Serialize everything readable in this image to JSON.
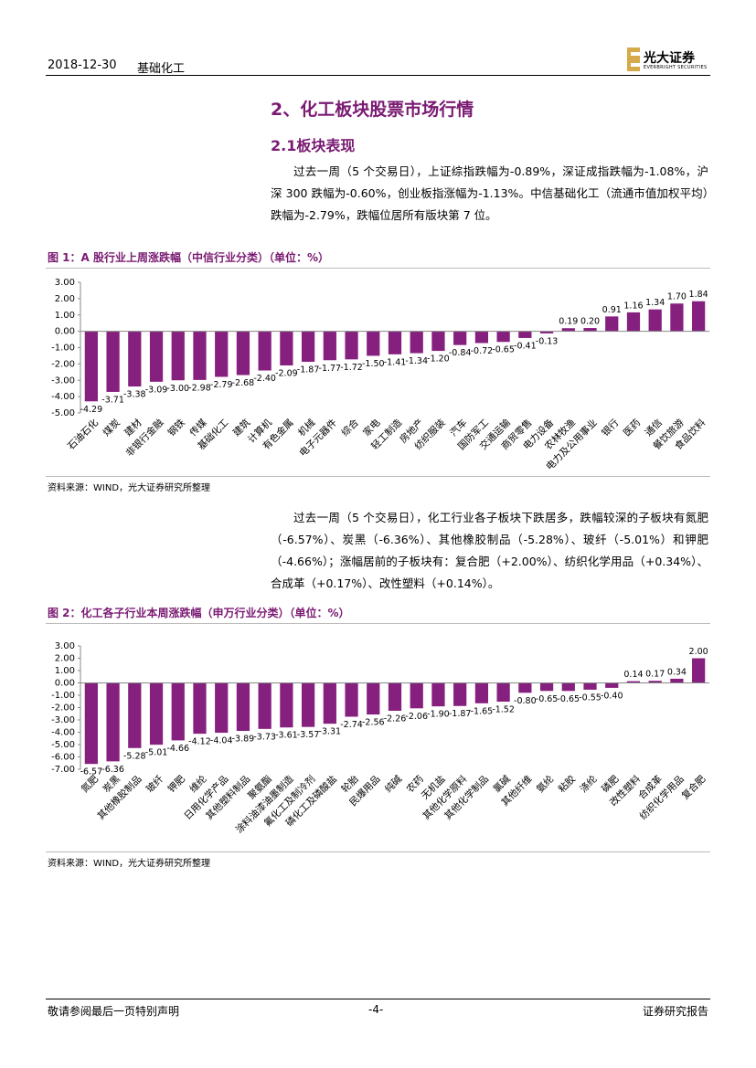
{
  "header": {
    "date": "2018-12-30",
    "sector": "基础化工",
    "logo": "光大证券",
    "logo_en": "EVERBRIGHT SECURITIES"
  },
  "section_title": "2、化工板块股票市场行情",
  "subsection_title": "2.1板块表现",
  "paragraphs": [
    "过去一周（5 个交易日），上证综指跌幅为-0.89%，深证成指跌幅为-1.08%，沪深 300 跌幅为-0.60%，创业板指涨幅为-1.13%。中信基础化工（流通市值加权平均）跌幅为-2.79%，跌幅位居所有版块第 7 位。",
    "过去一周（5 个交易日），化工行业各子板块下跌居多，跌幅较深的子板块有氮肥（-6.57%）、炭黑（-6.36%）、其他橡胶制品（-5.28%）、玻纤（-5.01%）和钾肥（-4.66%）；涨幅居前的子板块有：复合肥（+2.00%）、纺织化学用品（+0.34%）、合成革（+0.17%）、改性塑料（+0.14%）。"
  ],
  "chart_data": [
    {
      "type": "bar",
      "title": "图 1：A 股行业上周涨跌幅（中信行业分类）（单位：%）",
      "source": "资料来源：WIND，光大证券研究所整理",
      "categories": [
        "石油石化",
        "煤炭",
        "建材",
        "非银行金融",
        "钢铁",
        "传媒",
        "基础化工",
        "建筑",
        "计算机",
        "有色金属",
        "机械",
        "电子元器件",
        "综合",
        "家电",
        "轻工制造",
        "房地产",
        "纺织服装",
        "汽车",
        "国防军工",
        "交通运输",
        "商贸零售",
        "电力设备",
        "农林牧渔",
        "电力及公用事业",
        "银行",
        "医药",
        "通信",
        "餐饮旅游",
        "食品饮料"
      ],
      "values": [
        -4.29,
        -3.71,
        -3.38,
        -3.09,
        -3.0,
        -2.98,
        -2.79,
        -2.68,
        -2.4,
        -2.09,
        -1.87,
        -1.77,
        -1.72,
        -1.5,
        -1.41,
        -1.34,
        -1.2,
        -0.84,
        -0.72,
        -0.65,
        -0.41,
        -0.13,
        0.19,
        0.2,
        0.91,
        1.16,
        1.34,
        1.7,
        1.84
      ],
      "value_labels": [
        "-4.29",
        "-3.71",
        "-3.38",
        "-3.09",
        "-3.00",
        "-2.98",
        "-2.79",
        "-2.68",
        "-2.40",
        "-2.09",
        "-1.87",
        "-1.77",
        "-1.72",
        "-1.50",
        "-1.41",
        "-1.34",
        "-1.20",
        "-0.84",
        "-0.72",
        "-0.65",
        "-0.41",
        "-0.13",
        "0.19",
        "0.20",
        "0.91",
        "1.16",
        "1.34",
        "1.70",
        "1.84"
      ],
      "color": "#86207f",
      "ylim": [
        -5,
        3
      ],
      "yticks": [
        {
          "value": 3,
          "label": "3.00"
        },
        {
          "value": 2,
          "label": "2.00"
        },
        {
          "value": 1,
          "label": "1.00"
        },
        {
          "value": 0,
          "label": "0.00"
        },
        {
          "value": -1,
          "label": "-1.00"
        },
        {
          "value": -2,
          "label": "-2.00"
        },
        {
          "value": -3,
          "label": "-3.00"
        },
        {
          "value": -4,
          "label": "-4.00"
        },
        {
          "value": -5,
          "label": "-5.00"
        }
      ]
    },
    {
      "type": "bar",
      "title": "图 2：化工各子行业本周涨跌幅（申万行业分类）（单位：%）",
      "source": "资料来源：WIND，光大证券研究所整理",
      "categories": [
        "氮肥",
        "炭黑",
        "其他橡胶制品",
        "玻纤",
        "钾肥",
        "维纶",
        "日用化学产品",
        "其他塑料制品",
        "聚氨酯",
        "涂料油漆油墨制造",
        "氟化工及制冷剂",
        "磷化工及磷酸盐",
        "轮胎",
        "民爆用品",
        "纯碱",
        "农药",
        "无机盐",
        "其他化学原料",
        "其他化学制品",
        "氯碱",
        "其他纤维",
        "氨纶",
        "粘胶",
        "涤纶",
        "磷肥",
        "改性塑料",
        "合成革",
        "纺织化学用品",
        "复合肥"
      ],
      "values": [
        -6.57,
        -6.36,
        -5.28,
        -5.01,
        -4.66,
        -4.12,
        -4.04,
        -3.89,
        -3.73,
        -3.61,
        -3.57,
        -3.31,
        -2.74,
        -2.56,
        -2.26,
        -2.06,
        -1.9,
        -1.87,
        -1.65,
        -1.52,
        -0.8,
        -0.65,
        -0.65,
        -0.55,
        -0.4,
        0.14,
        0.17,
        0.34,
        2.0
      ],
      "value_labels": [
        "-6.57",
        "-6.36",
        "-5.28",
        "-5.01",
        "-4.66",
        "-4.12",
        "-4.04",
        "-3.89",
        "-3.73",
        "-3.61",
        "-3.57",
        "-3.31",
        "-2.74",
        "-2.56",
        "-2.26",
        "-2.06",
        "-1.90",
        "-1.87",
        "-1.65",
        "-1.52",
        "-0.80",
        "-0.65",
        "-0.65",
        "-0.55",
        "-0.40",
        "0.14",
        "0.17",
        "0.34",
        "2.00"
      ],
      "color": "#86207f",
      "ylim": [
        -7,
        3
      ],
      "yticks": [
        {
          "value": 3,
          "label": "3.00"
        },
        {
          "value": 2,
          "label": "2.00"
        },
        {
          "value": 1,
          "label": "1.00"
        },
        {
          "value": 0,
          "label": "0.00"
        },
        {
          "value": -1,
          "label": "-1.00"
        },
        {
          "value": -2,
          "label": "-2.00"
        },
        {
          "value": -3,
          "label": "-3.00"
        },
        {
          "value": -4,
          "label": "-4.00"
        },
        {
          "value": -5,
          "label": "-5.00"
        },
        {
          "value": -6,
          "label": "-6.00"
        },
        {
          "value": -7,
          "label": "-7.00"
        }
      ]
    }
  ],
  "footer": {
    "left": "敬请参阅最后一页特别声明",
    "center": "-4-",
    "right": "证券研究报告"
  }
}
